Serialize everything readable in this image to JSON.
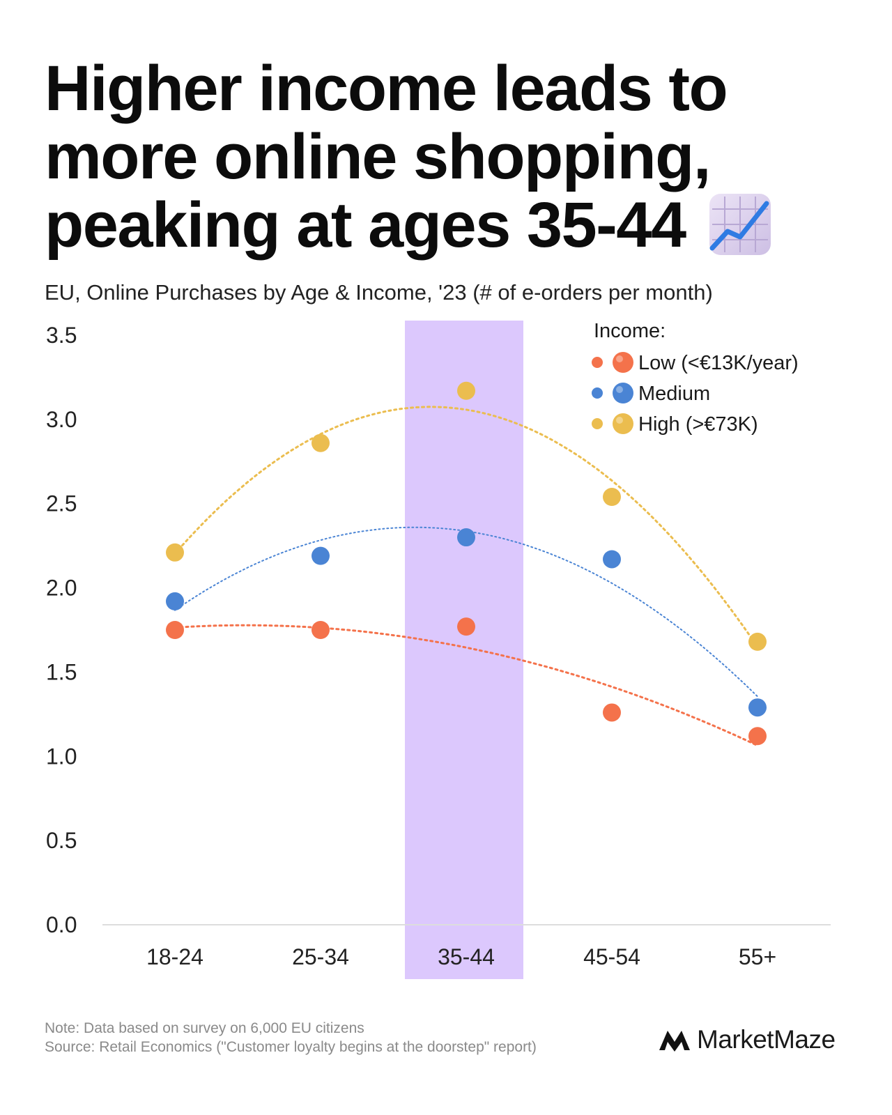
{
  "title_lines": [
    "Higher income leads to",
    "more online shopping,",
    "peaking at ages 35-44"
  ],
  "title_icon": "chart-increasing-icon",
  "subtitle": "EU, Online Purchases by Age & Income, '23 (# of e-orders per month)",
  "chart_data": {
    "type": "scatter",
    "categories": [
      "18-24",
      "25-34",
      "35-44",
      "45-54",
      "55+"
    ],
    "highlight_category": "35-44",
    "highlight_color": "#dcc8fd",
    "ylim": [
      0,
      3.5
    ],
    "yticks": [
      "0.0",
      "0.5",
      "1.0",
      "1.5",
      "2.0",
      "2.5",
      "3.0",
      "3.5"
    ],
    "ytick_values": [
      0,
      0.5,
      1.0,
      1.5,
      2.0,
      2.5,
      3.0,
      3.5
    ],
    "grid": false,
    "trendlines": "dotted",
    "legend_title": "Income:",
    "legend_position": "top-right",
    "series": [
      {
        "name": "Low (<€13K/year)",
        "color": "#f4724b",
        "values": [
          1.75,
          1.75,
          1.77,
          1.26,
          1.12
        ]
      },
      {
        "name": "Medium",
        "color": "#4a84d4",
        "values": [
          1.92,
          2.19,
          2.3,
          2.17,
          1.29
        ]
      },
      {
        "name": "High (>€73K)",
        "color": "#ebbd4f",
        "values": [
          2.21,
          2.86,
          3.17,
          2.54,
          1.68
        ]
      }
    ]
  },
  "footer": {
    "note": "Note: Data based on survey on 6,000 EU citizens",
    "source": "Source: Retail Economics (\"Customer loyalty begins at the doorstep\" report)"
  },
  "brand": {
    "name": "MarketMaze",
    "icon": "marketmaze-logo-icon"
  }
}
